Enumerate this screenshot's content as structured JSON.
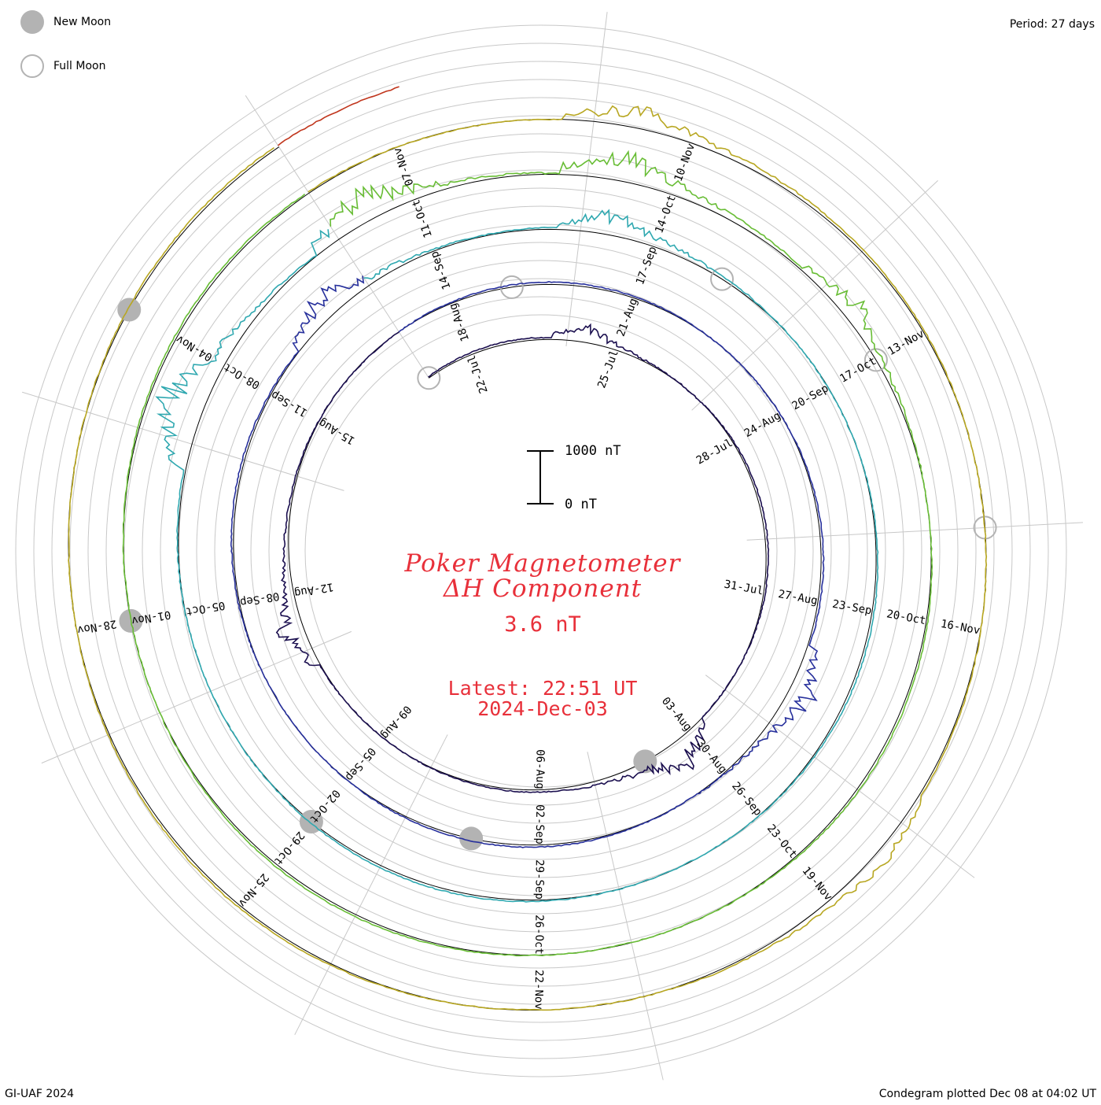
{
  "header": {
    "period": "Period: 27 days"
  },
  "legend": {
    "new_moon": "New Moon",
    "full_moon": "Full Moon",
    "moon_color": "#b3b3b3"
  },
  "center": {
    "title_line1": "Poker Magnetometer",
    "title_line2": "ΔH Component",
    "current_value": "3.6 nT",
    "latest_time": "Latest: 22:51 UT",
    "latest_date": "2024-Dec-03",
    "text_color": "#e8303a"
  },
  "scale_bar": {
    "top_label": "1000 nT",
    "bottom_label": "0 nT"
  },
  "footer": {
    "left": "GI-UAF 2024",
    "right": "Condegram plotted Dec 08 at 04:02 UT"
  },
  "chart_data": {
    "type": "condegram-spiral",
    "period_days": 27,
    "direction": "clockwise",
    "unit": "nT",
    "spiral_start": "2024-07-21",
    "spiral_end": "2024-12-03",
    "cycles": [
      {
        "start": "2024-07-21",
        "color": "#1b0f4f"
      },
      {
        "start": "2024-08-17",
        "color": "#27309c"
      },
      {
        "start": "2024-09-13",
        "color": "#2fa8b0"
      },
      {
        "start": "2024-10-10",
        "color": "#68bd35"
      },
      {
        "start": "2024-11-06",
        "color": "#b8a722"
      },
      {
        "start": "2024-12-03",
        "color": "#c0351c"
      }
    ],
    "ticks": [
      {
        "label": "22-Jul",
        "angle_deg": -33
      },
      {
        "label": "25-Jul",
        "angle_deg": 7
      },
      {
        "label": "28-Jul",
        "angle_deg": 47
      },
      {
        "label": "31-Jul",
        "angle_deg": 87
      },
      {
        "label": "03-Aug",
        "angle_deg": 127
      },
      {
        "label": "06-Aug",
        "angle_deg": 167
      },
      {
        "label": "09-Aug",
        "angle_deg": 207
      },
      {
        "label": "12-Aug",
        "angle_deg": 247
      },
      {
        "label": "15-Aug",
        "angle_deg": 287
      },
      {
        "label": "18-Aug",
        "angle_deg": 327
      },
      {
        "label": "21-Aug",
        "angle_deg": 7
      },
      {
        "label": "24-Aug",
        "angle_deg": 47
      },
      {
        "label": "27-Aug",
        "angle_deg": 87
      },
      {
        "label": "30-Aug",
        "angle_deg": 127
      },
      {
        "label": "02-Sep",
        "angle_deg": 167
      },
      {
        "label": "05-Sep",
        "angle_deg": 207
      },
      {
        "label": "08-Sep",
        "angle_deg": 247
      },
      {
        "label": "11-Sep",
        "angle_deg": 287
      },
      {
        "label": "14-Sep",
        "angle_deg": 327
      },
      {
        "label": "17-Sep",
        "angle_deg": 7
      },
      {
        "label": "20-Sep",
        "angle_deg": 47
      },
      {
        "label": "23-Sep",
        "angle_deg": 87
      },
      {
        "label": "26-Sep",
        "angle_deg": 127
      },
      {
        "label": "29-Sep",
        "angle_deg": 167
      },
      {
        "label": "02-Oct",
        "angle_deg": 207
      },
      {
        "label": "05-Oct",
        "angle_deg": 247
      },
      {
        "label": "08-Oct",
        "angle_deg": 287
      },
      {
        "label": "11-Oct",
        "angle_deg": 327
      },
      {
        "label": "14-Oct",
        "angle_deg": 7
      },
      {
        "label": "17-Oct",
        "angle_deg": 47
      },
      {
        "label": "20-Oct",
        "angle_deg": 87
      },
      {
        "label": "23-Oct",
        "angle_deg": 127
      },
      {
        "label": "26-Oct",
        "angle_deg": 167
      },
      {
        "label": "29-Oct",
        "angle_deg": 207
      },
      {
        "label": "01-Nov",
        "angle_deg": 247
      },
      {
        "label": "04-Nov",
        "angle_deg": 287
      },
      {
        "label": "07-Nov",
        "angle_deg": 327
      },
      {
        "label": "10-Nov",
        "angle_deg": 7
      },
      {
        "label": "13-Nov",
        "angle_deg": 47
      },
      {
        "label": "16-Nov",
        "angle_deg": 87
      },
      {
        "label": "19-Nov",
        "angle_deg": 127
      },
      {
        "label": "22-Nov",
        "angle_deg": 167
      },
      {
        "label": "25-Nov",
        "angle_deg": 207
      },
      {
        "label": "28-Nov",
        "angle_deg": 247
      }
    ],
    "moons": [
      {
        "phase": "full",
        "date": "2024-07-21"
      },
      {
        "phase": "new",
        "date": "2024-08-04"
      },
      {
        "phase": "full",
        "date": "2024-08-19"
      },
      {
        "phase": "new",
        "date": "2024-09-03"
      },
      {
        "phase": "full",
        "date": "2024-09-18"
      },
      {
        "phase": "new",
        "date": "2024-10-02"
      },
      {
        "phase": "full",
        "date": "2024-10-17"
      },
      {
        "phase": "new",
        "date": "2024-11-01"
      },
      {
        "phase": "full",
        "date": "2024-11-15"
      },
      {
        "phase": "new",
        "date": "2024-12-01"
      }
    ],
    "disturbances": [
      {
        "date": "2024-07-24",
        "peak_nT": 350
      },
      {
        "date": "2024-08-03",
        "peak_nT": 700
      },
      {
        "date": "2024-08-11",
        "peak_nT": 550
      },
      {
        "date": "2024-08-28",
        "peak_nT": 600
      },
      {
        "date": "2024-09-12",
        "peak_nT": 650
      },
      {
        "date": "2024-09-16",
        "peak_nT": 500
      },
      {
        "date": "2024-10-07",
        "peak_nT": 1000
      },
      {
        "date": "2024-10-10",
        "peak_nT": 800
      },
      {
        "date": "2024-10-13",
        "peak_nT": 650
      },
      {
        "date": "2024-10-16",
        "peak_nT": 450
      },
      {
        "date": "2024-11-09",
        "peak_nT": 500
      },
      {
        "date": "2024-11-18",
        "peak_nT": 300
      }
    ],
    "scale_nT": 1000
  }
}
